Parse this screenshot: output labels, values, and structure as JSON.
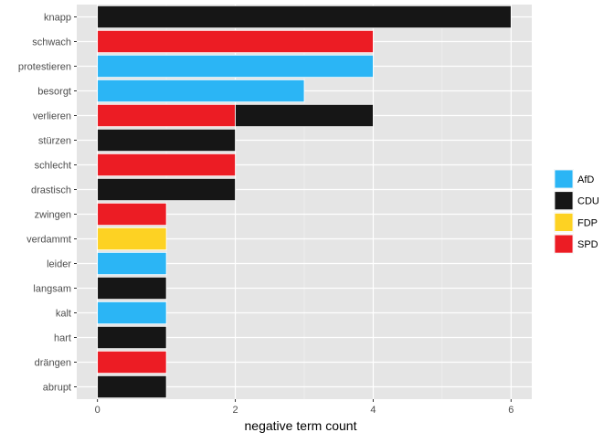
{
  "chart_data": {
    "type": "bar",
    "orientation": "horizontal",
    "stacked": true,
    "categories": [
      "knapp",
      "schwach",
      "protestieren",
      "besorgt",
      "verlieren",
      "stürzen",
      "schlecht",
      "drastisch",
      "zwingen",
      "verdammt",
      "leider",
      "langsam",
      "kalt",
      "hart",
      "drängen",
      "abrupt"
    ],
    "series": [
      {
        "name": "AfD",
        "color": "#2bb5f5",
        "values": [
          0,
          0,
          4,
          3,
          0,
          0,
          0,
          0,
          0,
          0,
          1,
          0,
          1,
          0,
          0,
          0
        ]
      },
      {
        "name": "CDU",
        "color": "#161616",
        "values": [
          6,
          0,
          0,
          0,
          2,
          2,
          0,
          2,
          0,
          0,
          0,
          1,
          0,
          1,
          0,
          1
        ]
      },
      {
        "name": "FDP",
        "color": "#fdd223",
        "values": [
          0,
          0,
          0,
          0,
          0,
          0,
          0,
          0,
          0,
          1,
          0,
          0,
          0,
          0,
          0,
          0
        ]
      },
      {
        "name": "SPD",
        "color": "#ec1c24",
        "values": [
          0,
          4,
          0,
          0,
          2,
          0,
          2,
          0,
          1,
          0,
          0,
          0,
          0,
          0,
          1,
          0
        ]
      }
    ],
    "stack_order": [
      "SPD",
      "FDP",
      "CDU",
      "AfD"
    ],
    "xlabel": "negative term count",
    "ylabel": "",
    "xlim": [
      -0.3,
      6.3
    ],
    "xticks": [
      0,
      2,
      4,
      6
    ],
    "grid": true,
    "legend_position": "right",
    "panel_color": "#e5e5e5"
  }
}
